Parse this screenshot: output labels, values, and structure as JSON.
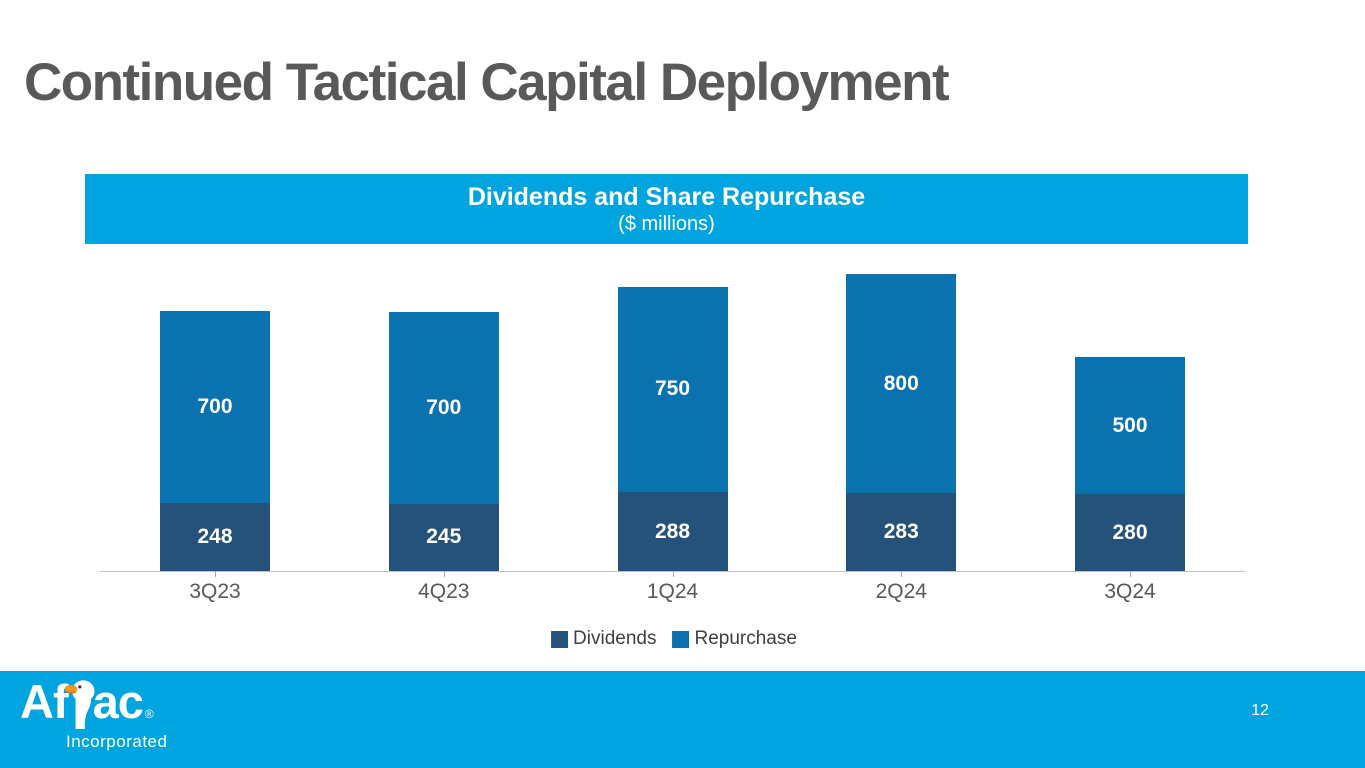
{
  "slide": {
    "title": "Continued Tactical Capital Deployment",
    "page_number": "12"
  },
  "chart_header": {
    "title": "Dividends and Share Repurchase",
    "subtitle": "($ millions)"
  },
  "chart_data": {
    "type": "bar",
    "stacked": true,
    "title": "Dividends and Share Repurchase",
    "subtitle": "($ millions)",
    "categories": [
      "3Q23",
      "4Q23",
      "1Q24",
      "2Q24",
      "3Q24"
    ],
    "series": [
      {
        "name": "Dividends",
        "color": "#24527B",
        "values": [
          248,
          245,
          288,
          283,
          280
        ]
      },
      {
        "name": "Repurchase",
        "color": "#0A72AE",
        "values": [
          700,
          700,
          750,
          800,
          500
        ]
      }
    ],
    "xlabel": "",
    "ylabel": "",
    "ylim": [
      0,
      1100
    ],
    "grid": false,
    "data_labels": true,
    "legend_position": "bottom"
  },
  "footer": {
    "logo": {
      "part1": "Af",
      "part2": "ac",
      "reg": "®",
      "subtext": "Incorporated",
      "duck_icon": "duck-icon"
    },
    "page_number": "12"
  },
  "colors": {
    "accent_cyan": "#00A5E0",
    "dividends_navy": "#24527B",
    "repurchase_blue": "#0A72AE",
    "title_gray": "#58595B",
    "axis_gray": "#C2C2C2",
    "tick_gray": "#A6A6A6",
    "label_gray": "#595959",
    "legend_text": "#404040",
    "value_label_white": "#FFFFFF",
    "beak_orange": "#F7941D"
  }
}
